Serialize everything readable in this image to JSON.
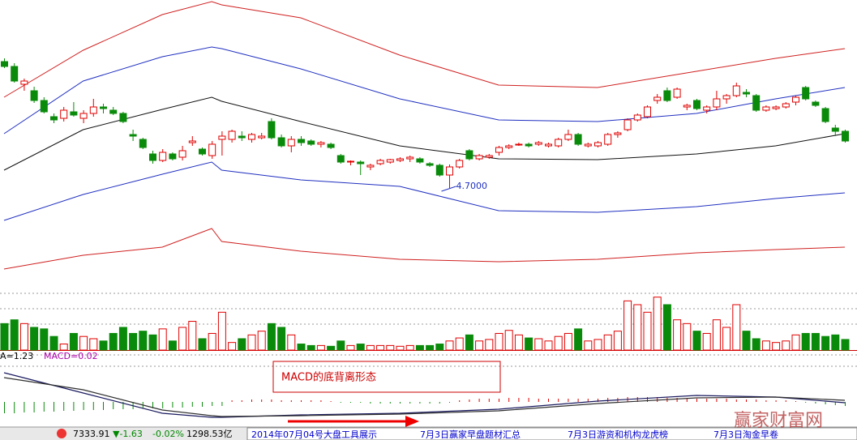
{
  "chart_data": {
    "type": "candlestick",
    "up_color": "#e00000",
    "down_color": "#0a8a0a",
    "ylim": [
      3.5,
      7.02
    ],
    "candles": [
      [
        6.26,
        6.3,
        6.18,
        6.2
      ],
      [
        6.2,
        6.24,
        6.0,
        6.02
      ],
      [
        5.98,
        6.05,
        5.9,
        6.02
      ],
      [
        5.9,
        5.95,
        5.75,
        5.78
      ],
      [
        5.78,
        5.82,
        5.62,
        5.64
      ],
      [
        5.58,
        5.62,
        5.5,
        5.54
      ],
      [
        5.56,
        5.7,
        5.52,
        5.66
      ],
      [
        5.64,
        5.76,
        5.58,
        5.6
      ],
      [
        5.56,
        5.66,
        5.5,
        5.62
      ],
      [
        5.62,
        5.8,
        5.58,
        5.7
      ],
      [
        5.7,
        5.74,
        5.62,
        5.68
      ],
      [
        5.66,
        5.7,
        5.6,
        5.62
      ],
      [
        5.62,
        5.64,
        5.5,
        5.52
      ],
      [
        5.36,
        5.42,
        5.28,
        5.34
      ],
      [
        5.3,
        5.32,
        5.18,
        5.2
      ],
      [
        5.12,
        5.16,
        5.0,
        5.04
      ],
      [
        5.04,
        5.18,
        5.02,
        5.14
      ],
      [
        5.12,
        5.14,
        5.04,
        5.06
      ],
      [
        5.08,
        5.22,
        5.04,
        5.16
      ],
      [
        5.26,
        5.34,
        5.22,
        5.28
      ],
      [
        5.18,
        5.2,
        5.1,
        5.12
      ],
      [
        5.1,
        5.28,
        5.06,
        5.24
      ],
      [
        5.3,
        5.4,
        5.1,
        5.34
      ],
      [
        5.3,
        5.42,
        5.26,
        5.4
      ],
      [
        5.34,
        5.4,
        5.28,
        5.32
      ],
      [
        5.3,
        5.38,
        5.26,
        5.36
      ],
      [
        5.32,
        5.38,
        5.3,
        5.34
      ],
      [
        5.52,
        5.56,
        5.3,
        5.32
      ],
      [
        5.32,
        5.36,
        5.2,
        5.22
      ],
      [
        5.22,
        5.34,
        5.14,
        5.3
      ],
      [
        5.3,
        5.34,
        5.22,
        5.26
      ],
      [
        5.28,
        5.3,
        5.22,
        5.24
      ],
      [
        5.24,
        5.28,
        5.2,
        5.26
      ],
      [
        5.24,
        5.26,
        5.18,
        5.2
      ],
      [
        5.1,
        5.12,
        5.0,
        5.02
      ],
      [
        5.02,
        5.04,
        4.98,
        5.03
      ],
      [
        5.02,
        5.04,
        4.86,
        5.0
      ],
      [
        4.96,
        5.0,
        4.92,
        4.98
      ],
      [
        5.0,
        5.06,
        4.98,
        5.04
      ],
      [
        5.02,
        5.06,
        5.0,
        5.05
      ],
      [
        5.04,
        5.08,
        5.02,
        5.06
      ],
      [
        5.06,
        5.1,
        5.02,
        5.08
      ],
      [
        5.06,
        5.08,
        5.0,
        5.02
      ],
      [
        5.0,
        5.02,
        4.96,
        4.98
      ],
      [
        4.98,
        5.0,
        4.84,
        4.86
      ],
      [
        4.86,
        4.99,
        4.7,
        4.96
      ],
      [
        4.96,
        5.06,
        4.94,
        5.04
      ],
      [
        5.16,
        5.18,
        5.04,
        5.06
      ],
      [
        5.06,
        5.12,
        5.04,
        5.1
      ],
      [
        5.08,
        5.12,
        5.06,
        5.1
      ],
      [
        5.14,
        5.22,
        5.1,
        5.2
      ],
      [
        5.2,
        5.24,
        5.18,
        5.22
      ],
      [
        5.24,
        5.26,
        5.22,
        5.24
      ],
      [
        5.24,
        5.26,
        5.2,
        5.22
      ],
      [
        5.24,
        5.28,
        5.22,
        5.26
      ],
      [
        5.22,
        5.26,
        5.2,
        5.24
      ],
      [
        5.22,
        5.32,
        5.2,
        5.3
      ],
      [
        5.3,
        5.42,
        5.28,
        5.36
      ],
      [
        5.36,
        5.38,
        5.22,
        5.24
      ],
      [
        5.22,
        5.26,
        5.2,
        5.24
      ],
      [
        5.22,
        5.28,
        5.2,
        5.26
      ],
      [
        5.24,
        5.38,
        5.22,
        5.36
      ],
      [
        5.36,
        5.4,
        5.32,
        5.38
      ],
      [
        5.42,
        5.56,
        5.4,
        5.54
      ],
      [
        5.54,
        5.62,
        5.52,
        5.6
      ],
      [
        5.58,
        5.72,
        5.56,
        5.7
      ],
      [
        5.78,
        5.86,
        5.74,
        5.82
      ],
      [
        5.9,
        5.94,
        5.76,
        5.78
      ],
      [
        5.82,
        5.94,
        5.8,
        5.92
      ],
      [
        5.7,
        5.74,
        5.66,
        5.72
      ],
      [
        5.78,
        5.8,
        5.66,
        5.68
      ],
      [
        5.66,
        5.72,
        5.62,
        5.7
      ],
      [
        5.7,
        5.9,
        5.66,
        5.8
      ],
      [
        5.8,
        5.86,
        5.74,
        5.84
      ],
      [
        5.84,
        6.0,
        5.82,
        5.96
      ],
      [
        5.88,
        5.92,
        5.82,
        5.86
      ],
      [
        5.84,
        5.86,
        5.64,
        5.66
      ],
      [
        5.66,
        5.72,
        5.64,
        5.7
      ],
      [
        5.68,
        5.72,
        5.66,
        5.7
      ],
      [
        5.7,
        5.76,
        5.68,
        5.74
      ],
      [
        5.76,
        5.84,
        5.72,
        5.82
      ],
      [
        5.94,
        5.96,
        5.78,
        5.8
      ],
      [
        5.76,
        5.78,
        5.7,
        5.72
      ],
      [
        5.68,
        5.7,
        5.5,
        5.52
      ],
      [
        5.44,
        5.48,
        5.34,
        5.4
      ],
      [
        5.4,
        5.42,
        5.26,
        5.28
      ]
    ],
    "low_label": "4.7000",
    "band_x": [
      0,
      8,
      16,
      21,
      22,
      30,
      40,
      50,
      60,
      70,
      78,
      85
    ],
    "bands": [
      {
        "color": "#d02020",
        "values": [
          5.82,
          6.4,
          6.84,
          7.0,
          6.96,
          6.8,
          6.34,
          5.97,
          5.94,
          6.14,
          6.3,
          6.42
        ]
      },
      {
        "color": "#2030c0",
        "values": [
          5.37,
          6.02,
          6.32,
          6.44,
          6.42,
          6.17,
          5.8,
          5.54,
          5.52,
          5.62,
          5.8,
          5.94
        ]
      },
      {
        "color": "#101010",
        "values": [
          4.92,
          5.42,
          5.67,
          5.82,
          5.77,
          5.52,
          5.22,
          5.06,
          5.05,
          5.12,
          5.22,
          5.37
        ]
      },
      {
        "color": "#2030c0",
        "values": [
          4.3,
          4.62,
          4.87,
          5.02,
          4.92,
          4.8,
          4.72,
          4.42,
          4.4,
          4.47,
          4.57,
          4.64
        ]
      },
      {
        "color": "#d02020",
        "values": [
          3.7,
          3.87,
          3.97,
          4.2,
          4.04,
          3.92,
          3.82,
          3.79,
          3.82,
          3.9,
          3.94,
          3.97
        ]
      }
    ],
    "volume_ylim": [
      0,
      75
    ],
    "volume": [
      35,
      40,
      35,
      30,
      28,
      18,
      8,
      22,
      18,
      15,
      12,
      22,
      30,
      22,
      25,
      20,
      28,
      12,
      30,
      38,
      15,
      22,
      50,
      10,
      15,
      20,
      25,
      35,
      30,
      20,
      8,
      6,
      6,
      5,
      12,
      6,
      8,
      6,
      6,
      6,
      5,
      6,
      6,
      6,
      8,
      12,
      16,
      20,
      12,
      14,
      22,
      26,
      20,
      16,
      15,
      12,
      18,
      22,
      28,
      12,
      14,
      20,
      25,
      65,
      60,
      50,
      70,
      60,
      40,
      35,
      25,
      22,
      40,
      30,
      60,
      25,
      15,
      12,
      10,
      12,
      20,
      22,
      22,
      18,
      20,
      14
    ],
    "indicator_header": [
      "A=1.23",
      "MACD=0.02"
    ],
    "macd_ylim": [
      -0.5,
      0.5
    ],
    "macd_dif": [
      0.36,
      0.11,
      -0.14,
      -0.19,
      -0.19,
      -0.16,
      -0.14,
      -0.09,
      0.01,
      0.08,
      0.06,
      -0.01
    ],
    "macd_dea": [
      0.3,
      0.15,
      -0.1,
      -0.17,
      -0.18,
      -0.17,
      -0.15,
      -0.11,
      -0.02,
      0.05,
      0.06,
      0.02
    ],
    "macd_hist": [
      -0.14,
      -0.14,
      -0.13,
      -0.13,
      -0.12,
      -0.12,
      -0.11,
      -0.11,
      -0.1,
      -0.1,
      -0.1,
      -0.09,
      -0.09,
      -0.09,
      -0.08,
      -0.08,
      -0.08,
      -0.07,
      -0.07,
      -0.06,
      -0.06,
      -0.05,
      -0.05,
      0.02,
      0.02,
      0.03,
      0.03,
      0.03,
      0.02,
      0.02,
      0.02,
      0.02,
      0.02,
      0.01,
      -0.01,
      -0.01,
      -0.01,
      -0.02,
      -0.02,
      -0.02,
      -0.02,
      -0.02,
      -0.02,
      -0.02,
      -0.02,
      -0.01,
      0.02,
      0.03,
      0.04,
      0.04,
      0.04,
      0.05,
      0.05,
      0.05,
      0.04,
      0.04,
      0.04,
      0.04,
      0.04,
      0.04,
      0.04,
      0.05,
      0.05,
      0.06,
      0.06,
      0.06,
      0.06,
      0.05,
      0.05,
      0.04,
      0.04,
      0.04,
      0.04,
      0.04,
      0.03,
      0.03,
      0.03,
      0.02,
      0.02,
      0.02,
      0.01,
      -0.01,
      -0.02,
      -0.03,
      -0.04,
      -0.05
    ],
    "annotation": "MACD的底背离形态"
  },
  "status_bar": {
    "index": "7333.91",
    "change": "▼-1.63",
    "percent": "-0.02%",
    "amount": "1298.53亿",
    "ticker": [
      "2014年07月04号大盘工具展示",
      "7月3日赢家早盘题材汇总",
      "7月3日游资和机构龙虎榜",
      "7月3日淘金早卷"
    ]
  },
  "watermark": "赢家财富网"
}
